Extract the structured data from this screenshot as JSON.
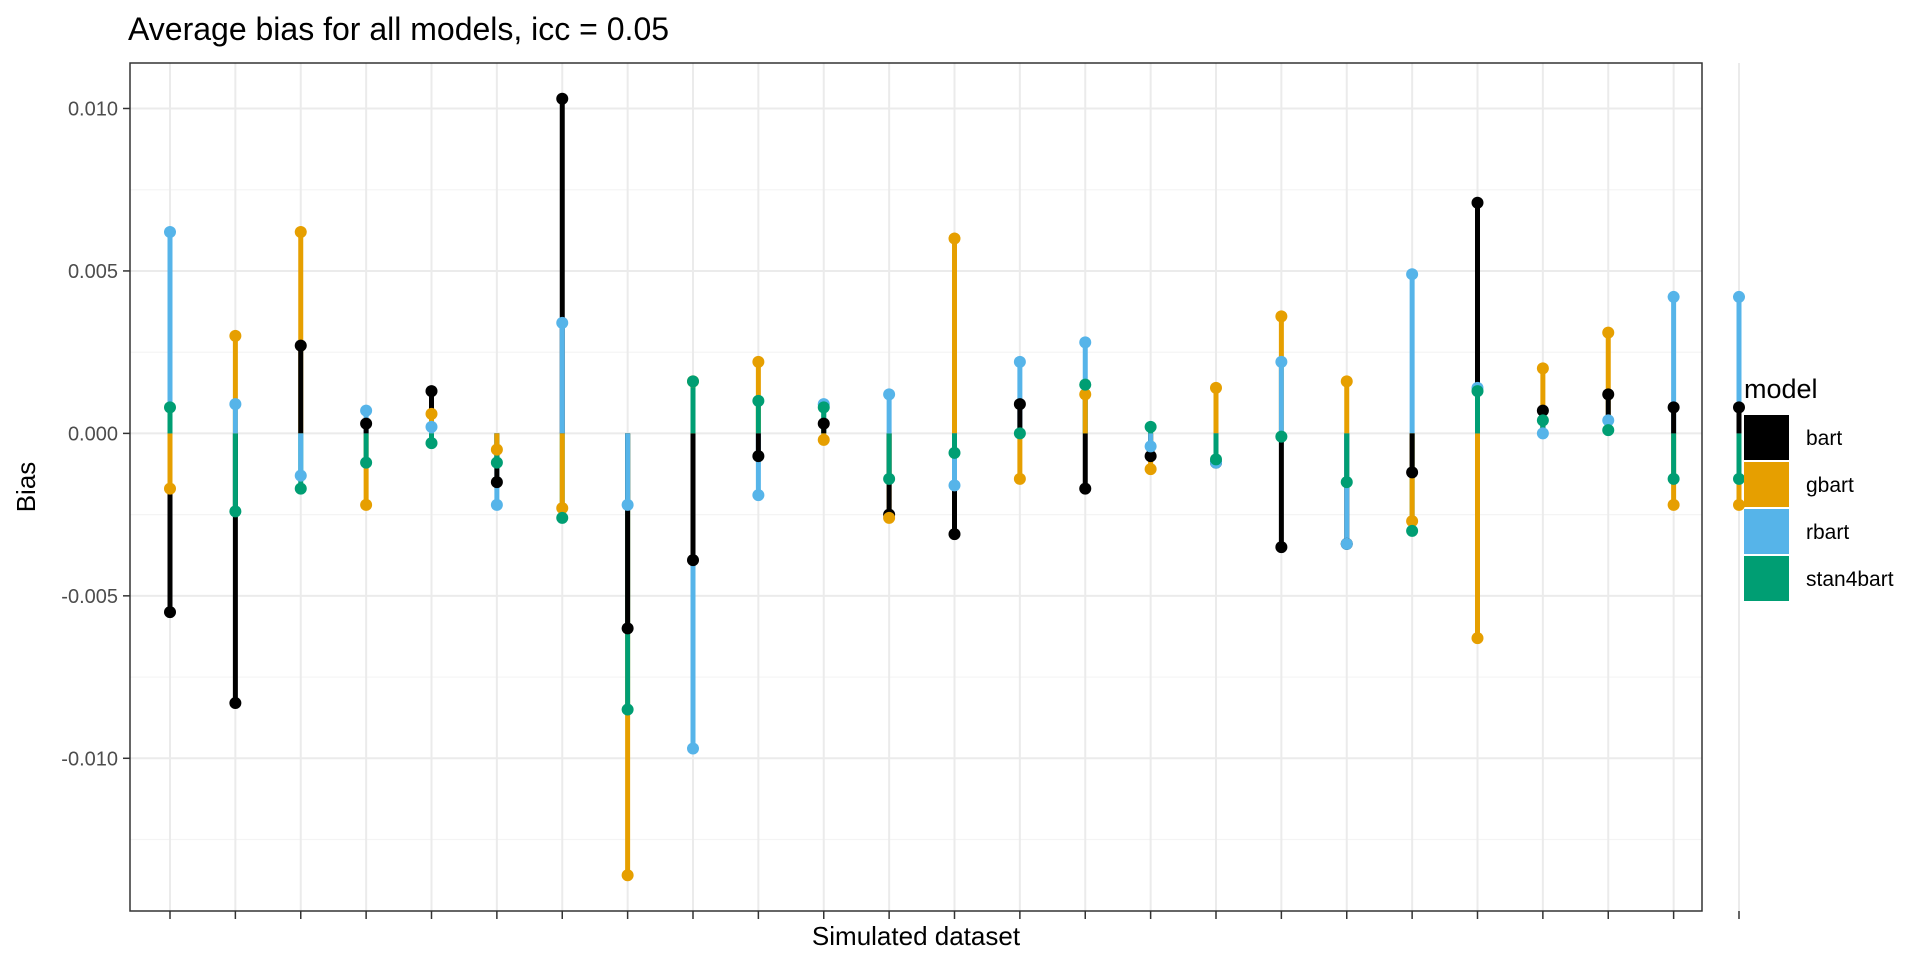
{
  "colors": {
    "bart": "#000000",
    "gbart": "#E69F00",
    "rbart": "#56B4E9",
    "stan4bart": "#009E73",
    "grid_major": "#ebebeb",
    "grid_minor": "#f4f4f4",
    "panel_border": "#333333"
  },
  "chart_data": {
    "type": "line",
    "title": "Average bias for all models, icc = 0.05",
    "xlabel": "Simulated dataset",
    "ylabel": "Bias",
    "ylim": [
      -0.0147,
      0.0114
    ],
    "yticks": [
      -0.01,
      -0.005,
      0.0,
      0.005,
      0.01
    ],
    "ytick_labels": [
      "-0.010",
      "-0.005",
      "0.000",
      "0.005",
      "0.010"
    ],
    "grid": true,
    "legend": {
      "title": "model",
      "position": "right",
      "entries": [
        "bart",
        "gbart",
        "rbart",
        "stan4bart"
      ]
    },
    "x": [
      1,
      2,
      3,
      4,
      5,
      6,
      7,
      8,
      9,
      10,
      11,
      12,
      13,
      14,
      15,
      16,
      17,
      18,
      19,
      20,
      21,
      22,
      23,
      24,
      25
    ],
    "series": [
      {
        "name": "bart",
        "values": [
          -0.0055,
          -0.0083,
          0.0027,
          0.0003,
          0.0013,
          -0.0015,
          0.0103,
          -0.006,
          -0.0039,
          -0.0007,
          0.0003,
          -0.0025,
          -0.0031,
          0.0009,
          -0.0017,
          -0.0007,
          -0.0009,
          -0.0035,
          -0.0034,
          -0.0012,
          0.0071,
          0.0007,
          0.0012,
          0.0008,
          0.0008
        ]
      },
      {
        "name": "gbart",
        "values": [
          -0.0017,
          0.003,
          0.0062,
          -0.0022,
          0.0006,
          -0.0005,
          -0.0023,
          -0.0136,
          0.0016,
          0.0022,
          -0.0002,
          -0.0026,
          0.006,
          -0.0014,
          0.0012,
          -0.0011,
          0.0014,
          0.0036,
          0.0016,
          -0.0027,
          -0.0063,
          0.002,
          0.0031,
          -0.0022,
          -0.0022
        ]
      },
      {
        "name": "rbart",
        "values": [
          0.0062,
          0.0009,
          -0.0013,
          0.0007,
          0.0002,
          -0.0022,
          0.0034,
          -0.0022,
          -0.0097,
          -0.0019,
          0.0009,
          0.0012,
          -0.0016,
          0.0022,
          0.0028,
          -0.0004,
          -0.0009,
          0.0022,
          -0.0034,
          0.0049,
          0.0014,
          0.0,
          0.0004,
          0.0042,
          0.0042
        ]
      },
      {
        "name": "stan4bart",
        "values": [
          0.0008,
          -0.0024,
          -0.0017,
          -0.0009,
          -0.0003,
          -0.0009,
          -0.0026,
          -0.0085,
          0.0016,
          0.001,
          0.0008,
          -0.0014,
          -0.0006,
          0.0,
          0.0015,
          0.0002,
          -0.0008,
          -0.0001,
          -0.0015,
          -0.003,
          0.0013,
          0.0004,
          0.0001,
          -0.0014,
          -0.0014
        ]
      }
    ]
  }
}
